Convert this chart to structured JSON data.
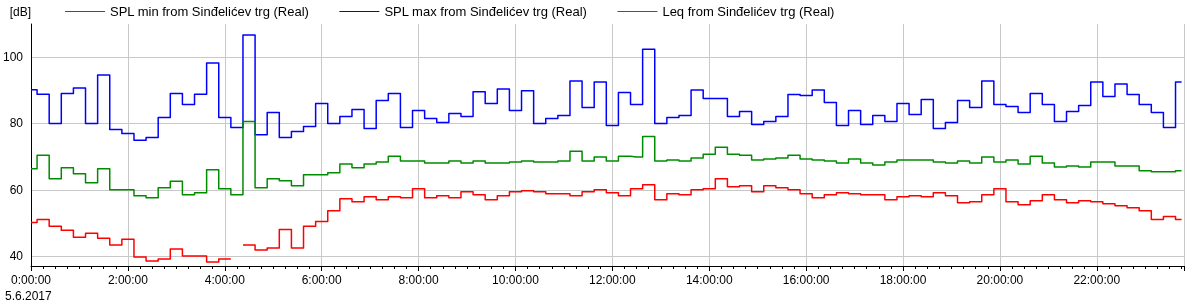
{
  "chart_data": {
    "type": "step",
    "ylabel": "[dB]",
    "x": [
      0,
      0.25,
      0.5,
      0.75,
      1,
      1.25,
      1.5,
      1.75,
      2,
      2.25,
      2.5,
      2.75,
      3,
      3.25,
      3.5,
      3.75,
      4,
      4.25,
      4.5,
      4.75,
      5,
      5.25,
      5.5,
      5.75,
      6,
      6.25,
      6.5,
      6.75,
      7,
      7.25,
      7.5,
      7.75,
      8,
      8.25,
      8.5,
      8.75,
      9,
      9.25,
      9.5,
      9.75,
      10,
      10.25,
      10.5,
      10.75,
      11,
      11.25,
      11.5,
      11.75,
      12,
      12.25,
      12.5,
      12.75,
      13,
      13.25,
      13.5,
      13.75,
      14,
      14.25,
      14.5,
      14.75,
      15,
      15.25,
      15.5,
      15.75,
      16,
      16.25,
      16.5,
      16.75,
      17,
      17.25,
      17.5,
      17.75,
      18,
      18.25,
      18.5,
      18.75,
      19,
      19.25,
      19.5,
      19.75,
      20,
      20.25,
      20.5,
      20.75,
      21,
      21.25,
      21.5,
      21.75,
      22,
      22.25,
      22.5,
      22.75,
      23,
      23.25,
      23.5,
      23.75
    ],
    "series": [
      {
        "name": "SPL min from Sinđelićev trg (Real)",
        "color": "#ff0000",
        "values": [
          50.1,
          51,
          49,
          47.8,
          45.7,
          46.9,
          45.4,
          43.3,
          45.1,
          39.7,
          38.5,
          39.1,
          42.1,
          40,
          40,
          38.2,
          39.1,
          null,
          43.3,
          41.8,
          42.4,
          48,
          42.4,
          49,
          50.4,
          53.7,
          57.3,
          56.4,
          57.9,
          57,
          57.9,
          57.6,
          60.3,
          57.6,
          58.2,
          57.6,
          59.4,
          58.5,
          57,
          58.2,
          59.4,
          59.7,
          59.4,
          58.8,
          58.8,
          58.2,
          59.4,
          60,
          59.1,
          58.2,
          60.3,
          61.5,
          57,
          58.8,
          58.5,
          60,
          60.3,
          63.3,
          60.9,
          61.2,
          59.4,
          61.2,
          60.6,
          60,
          58.8,
          57.6,
          58.5,
          59.1,
          58.8,
          58.5,
          58.5,
          57,
          57.9,
          58.2,
          57.9,
          59.1,
          58.2,
          56.1,
          56.4,
          58.5,
          60.3,
          56.4,
          55.5,
          56.7,
          58.5,
          57,
          56.1,
          56.7,
          56.4,
          55.8,
          55.2,
          54.6,
          53.7,
          51,
          51.9,
          51
        ]
      },
      {
        "name": "SPL max from Sinđelićev trg (Real)",
        "color": "#0000ff",
        "values": [
          90.2,
          88.8,
          80,
          89,
          90.7,
          80,
          94.6,
          78.2,
          77,
          74.9,
          75.8,
          81.8,
          89,
          85.7,
          88.8,
          98.2,
          81.8,
          78.8,
          106.7,
          76.6,
          83.3,
          75.8,
          77.6,
          79.1,
          86,
          80,
          82.1,
          84.2,
          78.5,
          86.9,
          89,
          78.8,
          83.9,
          81.5,
          80.3,
          83,
          82.1,
          89.6,
          86,
          90.4,
          83.9,
          89.9,
          80,
          81.5,
          82.4,
          92.8,
          84.8,
          92.5,
          79.4,
          89.3,
          85.7,
          102.4,
          80,
          81.8,
          82.4,
          90.1,
          87.5,
          87.5,
          82.1,
          83.6,
          79.7,
          80.6,
          82.1,
          88.7,
          88.4,
          90.1,
          86.3,
          79.4,
          83.9,
          79.7,
          82.4,
          80.6,
          86,
          82.7,
          87.2,
          78.5,
          80.3,
          86.9,
          84.8,
          92.8,
          85.7,
          85.1,
          83.3,
          89,
          85.7,
          80.6,
          83.6,
          85.4,
          92.5,
          88.1,
          91.9,
          88.7,
          85.7,
          83.3,
          78.8,
          92.5
        ]
      },
      {
        "name": "Leq from Sinđelićev trg (Real)",
        "color": "#008c00",
        "values": [
          66.3,
          70.4,
          63.3,
          66.6,
          64.8,
          62.1,
          66.3,
          60,
          60,
          58.2,
          57.6,
          60.6,
          62.6,
          58.5,
          59.1,
          66,
          60.3,
          58.5,
          80.6,
          60.6,
          63.3,
          62.7,
          61.2,
          64.5,
          64.5,
          65.1,
          67.8,
          66.6,
          67.8,
          68.4,
          70.1,
          68.7,
          68.7,
          68.1,
          68.1,
          68.7,
          68.1,
          68.7,
          68.1,
          68.1,
          68.4,
          68.7,
          68.4,
          68.4,
          68.7,
          71.6,
          68.7,
          69.9,
          68.7,
          70.1,
          69.9,
          76.1,
          68.7,
          69,
          68.7,
          69.6,
          70.7,
          72.8,
          70.7,
          70.4,
          69,
          69.3,
          69.6,
          70.4,
          69.3,
          69,
          68.7,
          68.1,
          69.3,
          68.1,
          67.5,
          68.4,
          69,
          69,
          69,
          68.4,
          68.1,
          68.7,
          68.1,
          69.9,
          68.4,
          69,
          67.8,
          70.1,
          68.1,
          66.9,
          67.2,
          66.9,
          68.4,
          68.4,
          67.2,
          67.2,
          65.7,
          65.4,
          65.4,
          65.7
        ]
      }
    ],
    "xlim": [
      0,
      23.8
    ],
    "xticks": [
      {
        "value": 0,
        "label": "0:00:00"
      },
      {
        "value": 2,
        "label": "2:00:00"
      },
      {
        "value": 4,
        "label": "4:00:00"
      },
      {
        "value": 6,
        "label": "6:00:00"
      },
      {
        "value": 8,
        "label": "8:00:00"
      },
      {
        "value": 10,
        "label": "10:00:00"
      },
      {
        "value": 12,
        "label": "12:00:00"
      },
      {
        "value": 14,
        "label": "14:00:00"
      },
      {
        "value": 16,
        "label": "16:00:00"
      },
      {
        "value": 18,
        "label": "18:00:00"
      },
      {
        "value": 20,
        "label": "20:00:00"
      },
      {
        "value": 22,
        "label": "22:00:00"
      }
    ],
    "ylim": [
      37,
      110
    ],
    "yticks": [
      40,
      60,
      80,
      100
    ],
    "grid": true,
    "legend": "top left",
    "annotations": [
      "5.6.2017"
    ]
  }
}
